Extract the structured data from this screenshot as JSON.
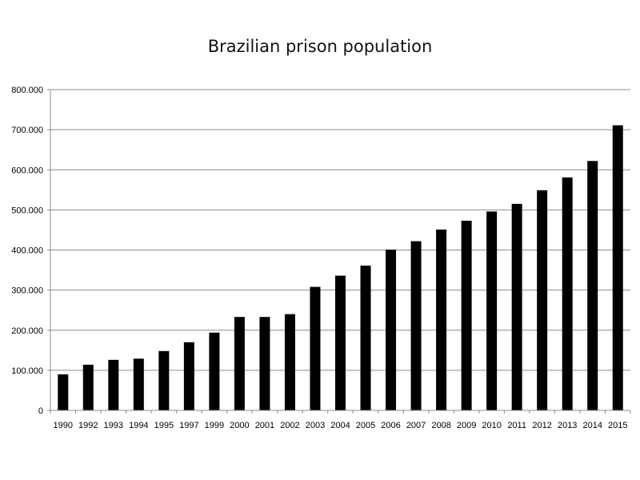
{
  "chart_data": {
    "type": "bar",
    "title": "Brazilian prison population",
    "xlabel": "",
    "ylabel": "",
    "categories": [
      "1990",
      "1992",
      "1993",
      "1994",
      "1995",
      "1997",
      "1999",
      "2000",
      "2001",
      "2002",
      "2003",
      "2004",
      "2005",
      "2006",
      "2007",
      "2008",
      "2009",
      "2010",
      "2011",
      "2012",
      "2013",
      "2014",
      "2015"
    ],
    "values": [
      90000,
      114000,
      126000,
      129000,
      148000,
      170000,
      194000,
      233000,
      233000,
      240000,
      308000,
      336000,
      361000,
      401000,
      422000,
      451000,
      473000,
      496000,
      515000,
      549000,
      581000,
      622000,
      711000
    ],
    "ylim": [
      0,
      800000
    ],
    "yticks": [
      0,
      100000,
      200000,
      300000,
      400000,
      500000,
      600000,
      700000,
      800000
    ],
    "ytick_labels": [
      "0",
      "100.000",
      "200.000",
      "300.000",
      "400.000",
      "500.000",
      "600.000",
      "700.000",
      "800.000"
    ],
    "grid": true,
    "legend": "none",
    "colors": {
      "bar": "#000000",
      "grid": "#8c8c8c",
      "axis": "#8c8c8c"
    }
  }
}
